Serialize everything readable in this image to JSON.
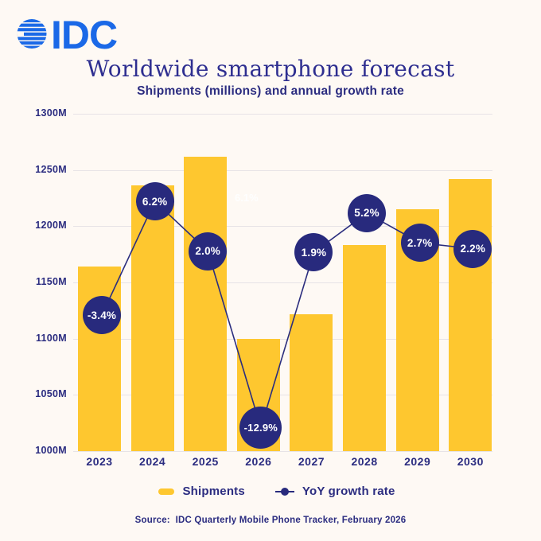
{
  "page": {
    "background": "#FEF9F4"
  },
  "logo": {
    "brand": "IDC",
    "color": "#1B69E7",
    "icon": "striped-globe-icon"
  },
  "header": {
    "title": "Worldwide smartphone forecast",
    "subtitle": "Shipments (millions) and annual growth rate"
  },
  "chart_data": {
    "type": "bar",
    "title": "Worldwide smartphone forecast",
    "subtitle": "Shipments (millions) and annual growth rate",
    "categories": [
      "2023",
      "2024",
      "2025",
      "2026",
      "2027",
      "2028",
      "2029",
      "2030"
    ],
    "series": [
      {
        "name": "Shipments",
        "type": "bar",
        "unit": "millions",
        "color": "#FEC72F",
        "values": [
          1164,
          1236,
          1262,
          1100,
          1122,
          1183,
          1215,
          1242
        ]
      },
      {
        "name": "YoY growth rate",
        "type": "line",
        "unit": "%",
        "color": "#282A7D",
        "values": [
          -3.4,
          6.2,
          2.0,
          -12.9,
          1.9,
          5.2,
          2.7,
          2.2
        ],
        "point_labels": [
          "-3.4%",
          "6.2%",
          "2.0%",
          "-12.9%",
          "1.9%",
          "5.2%",
          "2.7%",
          "2.2%"
        ]
      }
    ],
    "y_axis": {
      "min": 1000,
      "max": 1300,
      "tick_labels": [
        "1300M",
        "1250M",
        "1200M",
        "1150M",
        "1100M",
        "1050M",
        "1000M"
      ]
    },
    "grid": true,
    "legend_position": "bottom",
    "ghost_label": "6.1%",
    "colors": {
      "bar": "#FEC72F",
      "line": "#2B2D7E",
      "marker_fill": "#282A7D",
      "marker_text": "#FFFFFF",
      "axis_text": "#2B2C80",
      "gridline": "#E7E3E6"
    }
  },
  "footer": {
    "source": "Source:  IDC Quarterly Mobile Phone Tracker, February 2026"
  }
}
